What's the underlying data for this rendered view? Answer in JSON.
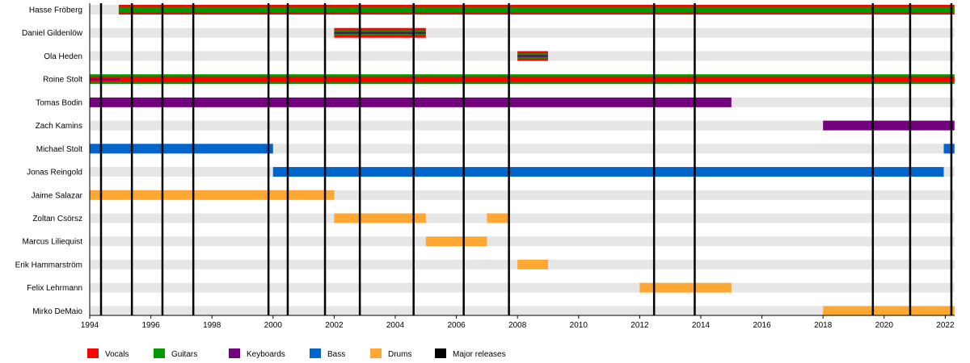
{
  "chart_data": {
    "type": "timeline",
    "title": "",
    "xlim": [
      1994,
      2022.3
    ],
    "x_ticks": [
      1994,
      1996,
      1998,
      2000,
      2002,
      2004,
      2006,
      2008,
      2010,
      2012,
      2014,
      2016,
      2018,
      2020,
      2022
    ],
    "colors": {
      "Vocals": "#ff0000",
      "Guitars": "#009a00",
      "Keyboards": "#73007c",
      "Bass": "#0066cc",
      "Drums": "#ffa733",
      "Major releases": "#000000"
    },
    "legend": [
      "Vocals",
      "Guitars",
      "Keyboards",
      "Bass",
      "Drums",
      "Major releases"
    ],
    "legend_placement": "bottom",
    "releases": [
      1994.37,
      1995.38,
      1996.38,
      1997.39,
      1999.85,
      2000.48,
      2001.7,
      2002.84,
      2004.6,
      2006.24,
      2007.72,
      2012.47,
      2013.8,
      2019.63,
      2020.85,
      2022.2
    ],
    "members": [
      {
        "name": "Hasse Fröberg",
        "periods": [
          {
            "start": 1994.95,
            "end": 2022.3,
            "roles": [
              "Vocals",
              "Guitars"
            ]
          }
        ]
      },
      {
        "name": "Daniel Gildenlöw",
        "periods": [
          {
            "start": 2002,
            "end": 2005,
            "roles": [
              "Vocals",
              "Guitars",
              "Keyboards"
            ]
          }
        ]
      },
      {
        "name": "Ola Heden",
        "periods": [
          {
            "start": 2008,
            "end": 2009,
            "roles": [
              "Vocals",
              "Guitars",
              "Keyboards"
            ]
          }
        ]
      },
      {
        "name": "Roine Stolt",
        "periods": [
          {
            "start": 1994,
            "end": 1995,
            "roles": [
              "Guitars",
              "Vocals",
              "Keyboards"
            ]
          },
          {
            "start": 1995,
            "end": 2022.3,
            "roles": [
              "Guitars",
              "Vocals"
            ]
          }
        ]
      },
      {
        "name": "Tomas Bodin",
        "periods": [
          {
            "start": 1994,
            "end": 2015,
            "roles": [
              "Keyboards"
            ]
          }
        ]
      },
      {
        "name": "Zach Kamins",
        "periods": [
          {
            "start": 2018,
            "end": 2022.3,
            "roles": [
              "Keyboards"
            ]
          }
        ]
      },
      {
        "name": "Michael Stolt",
        "periods": [
          {
            "start": 1994,
            "end": 2000,
            "roles": [
              "Bass"
            ]
          },
          {
            "start": 2021.95,
            "end": 2022.3,
            "roles": [
              "Bass"
            ]
          }
        ]
      },
      {
        "name": "Jonas Reingold",
        "periods": [
          {
            "start": 2000,
            "end": 2021.95,
            "roles": [
              "Bass"
            ]
          }
        ]
      },
      {
        "name": "Jaime Salazar",
        "periods": [
          {
            "start": 1994,
            "end": 2002,
            "roles": [
              "Drums"
            ]
          }
        ]
      },
      {
        "name": "Zoltan Csörsz",
        "periods": [
          {
            "start": 2002,
            "end": 2005,
            "roles": [
              "Drums"
            ]
          },
          {
            "start": 2007,
            "end": 2007.75,
            "roles": [
              "Drums"
            ]
          }
        ]
      },
      {
        "name": "Marcus Liliequist",
        "periods": [
          {
            "start": 2005,
            "end": 2007,
            "roles": [
              "Drums"
            ]
          }
        ]
      },
      {
        "name": "Erik Hammarström",
        "periods": [
          {
            "start": 2008,
            "end": 2009,
            "roles": [
              "Drums"
            ]
          }
        ]
      },
      {
        "name": "Felix Lehrmann",
        "periods": [
          {
            "start": 2012,
            "end": 2015,
            "roles": [
              "Drums"
            ]
          }
        ]
      },
      {
        "name": "Mirko DeMaio",
        "periods": [
          {
            "start": 2018,
            "end": 2022.3,
            "roles": [
              "Drums"
            ]
          }
        ]
      }
    ]
  }
}
